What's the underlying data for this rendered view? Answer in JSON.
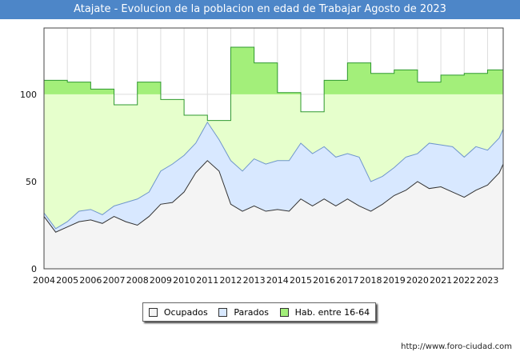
{
  "title": "Atajate - Evolucion de la poblacion en edad de Trabajar Agosto de 2023",
  "source": "http://www.foro-ciudad.com",
  "colors": {
    "title_bg": "#4d86c8",
    "ocupados_fill": "#f4f4f4",
    "ocupados_line": "#333333",
    "parados_fill": "#d8e8ff",
    "parados_line": "#6f96cc",
    "hab_fill": "#e6ffcc",
    "hab_fill_top": "#a3ef7a",
    "hab_line": "#2f9a2f"
  },
  "chart_data": {
    "type": "area",
    "title": "Atajate - Evolucion de la poblacion en edad de Trabajar Agosto de 2023",
    "x_ticks": [
      "2004",
      "2005",
      "2006",
      "2007",
      "2008",
      "2009",
      "2010",
      "2011",
      "2012",
      "2013",
      "2014",
      "2015",
      "2016",
      "2017",
      "2018",
      "2019",
      "2020",
      "2021",
      "2022",
      "2023"
    ],
    "x_range": [
      2004,
      2023.67
    ],
    "y_ticks": [
      0,
      50,
      100
    ],
    "ylim": [
      0,
      138
    ],
    "grid": true,
    "legend": [
      "Ocupados",
      "Parados",
      "Hab. entre 16-64"
    ],
    "legend_position": "bottom",
    "series": [
      {
        "name": "Hab. entre 16-64",
        "step": true,
        "x": [
          2004,
          2005,
          2006,
          2007,
          2008,
          2009,
          2010,
          2011,
          2012,
          2013,
          2014,
          2015,
          2016,
          2017,
          2018,
          2019,
          2020,
          2021,
          2022,
          2023
        ],
        "values": [
          108,
          107,
          103,
          94,
          107,
          97,
          88,
          85,
          127,
          118,
          101,
          90,
          108,
          118,
          112,
          114,
          107,
          111,
          112,
          114
        ]
      },
      {
        "name": "Parados",
        "x": [
          2004.0,
          2004.5,
          2005.0,
          2005.5,
          2006.0,
          2006.5,
          2007.0,
          2007.5,
          2008.0,
          2008.5,
          2009.0,
          2009.5,
          2010.0,
          2010.5,
          2011.0,
          2011.5,
          2012.0,
          2012.5,
          2013.0,
          2013.5,
          2014.0,
          2014.5,
          2015.0,
          2015.5,
          2016.0,
          2016.5,
          2017.0,
          2017.5,
          2018.0,
          2018.5,
          2019.0,
          2019.5,
          2020.0,
          2020.5,
          2021.0,
          2021.5,
          2022.0,
          2022.5,
          2023.0,
          2023.5,
          2023.67
        ],
        "values": [
          32,
          23,
          27,
          33,
          34,
          31,
          36,
          38,
          40,
          44,
          56,
          60,
          65,
          72,
          84,
          74,
          62,
          56,
          63,
          60,
          62,
          62,
          72,
          66,
          70,
          64,
          66,
          64,
          50,
          53,
          58,
          64,
          66,
          72,
          71,
          70,
          64,
          70,
          68,
          75,
          80
        ]
      },
      {
        "name": "Ocupados",
        "x": [
          2004.0,
          2004.5,
          2005.0,
          2005.5,
          2006.0,
          2006.5,
          2007.0,
          2007.5,
          2008.0,
          2008.5,
          2009.0,
          2009.5,
          2010.0,
          2010.5,
          2011.0,
          2011.5,
          2012.0,
          2012.5,
          2013.0,
          2013.5,
          2014.0,
          2014.5,
          2015.0,
          2015.5,
          2016.0,
          2016.5,
          2017.0,
          2017.5,
          2018.0,
          2018.5,
          2019.0,
          2019.5,
          2020.0,
          2020.5,
          2021.0,
          2021.5,
          2022.0,
          2022.5,
          2023.0,
          2023.5,
          2023.67
        ],
        "values": [
          30,
          21,
          24,
          27,
          28,
          26,
          30,
          27,
          25,
          30,
          37,
          38,
          44,
          55,
          62,
          56,
          37,
          33,
          36,
          33,
          34,
          33,
          40,
          36,
          40,
          36,
          40,
          36,
          33,
          37,
          42,
          45,
          50,
          46,
          47,
          44,
          41,
          45,
          48,
          55,
          60
        ]
      }
    ]
  }
}
